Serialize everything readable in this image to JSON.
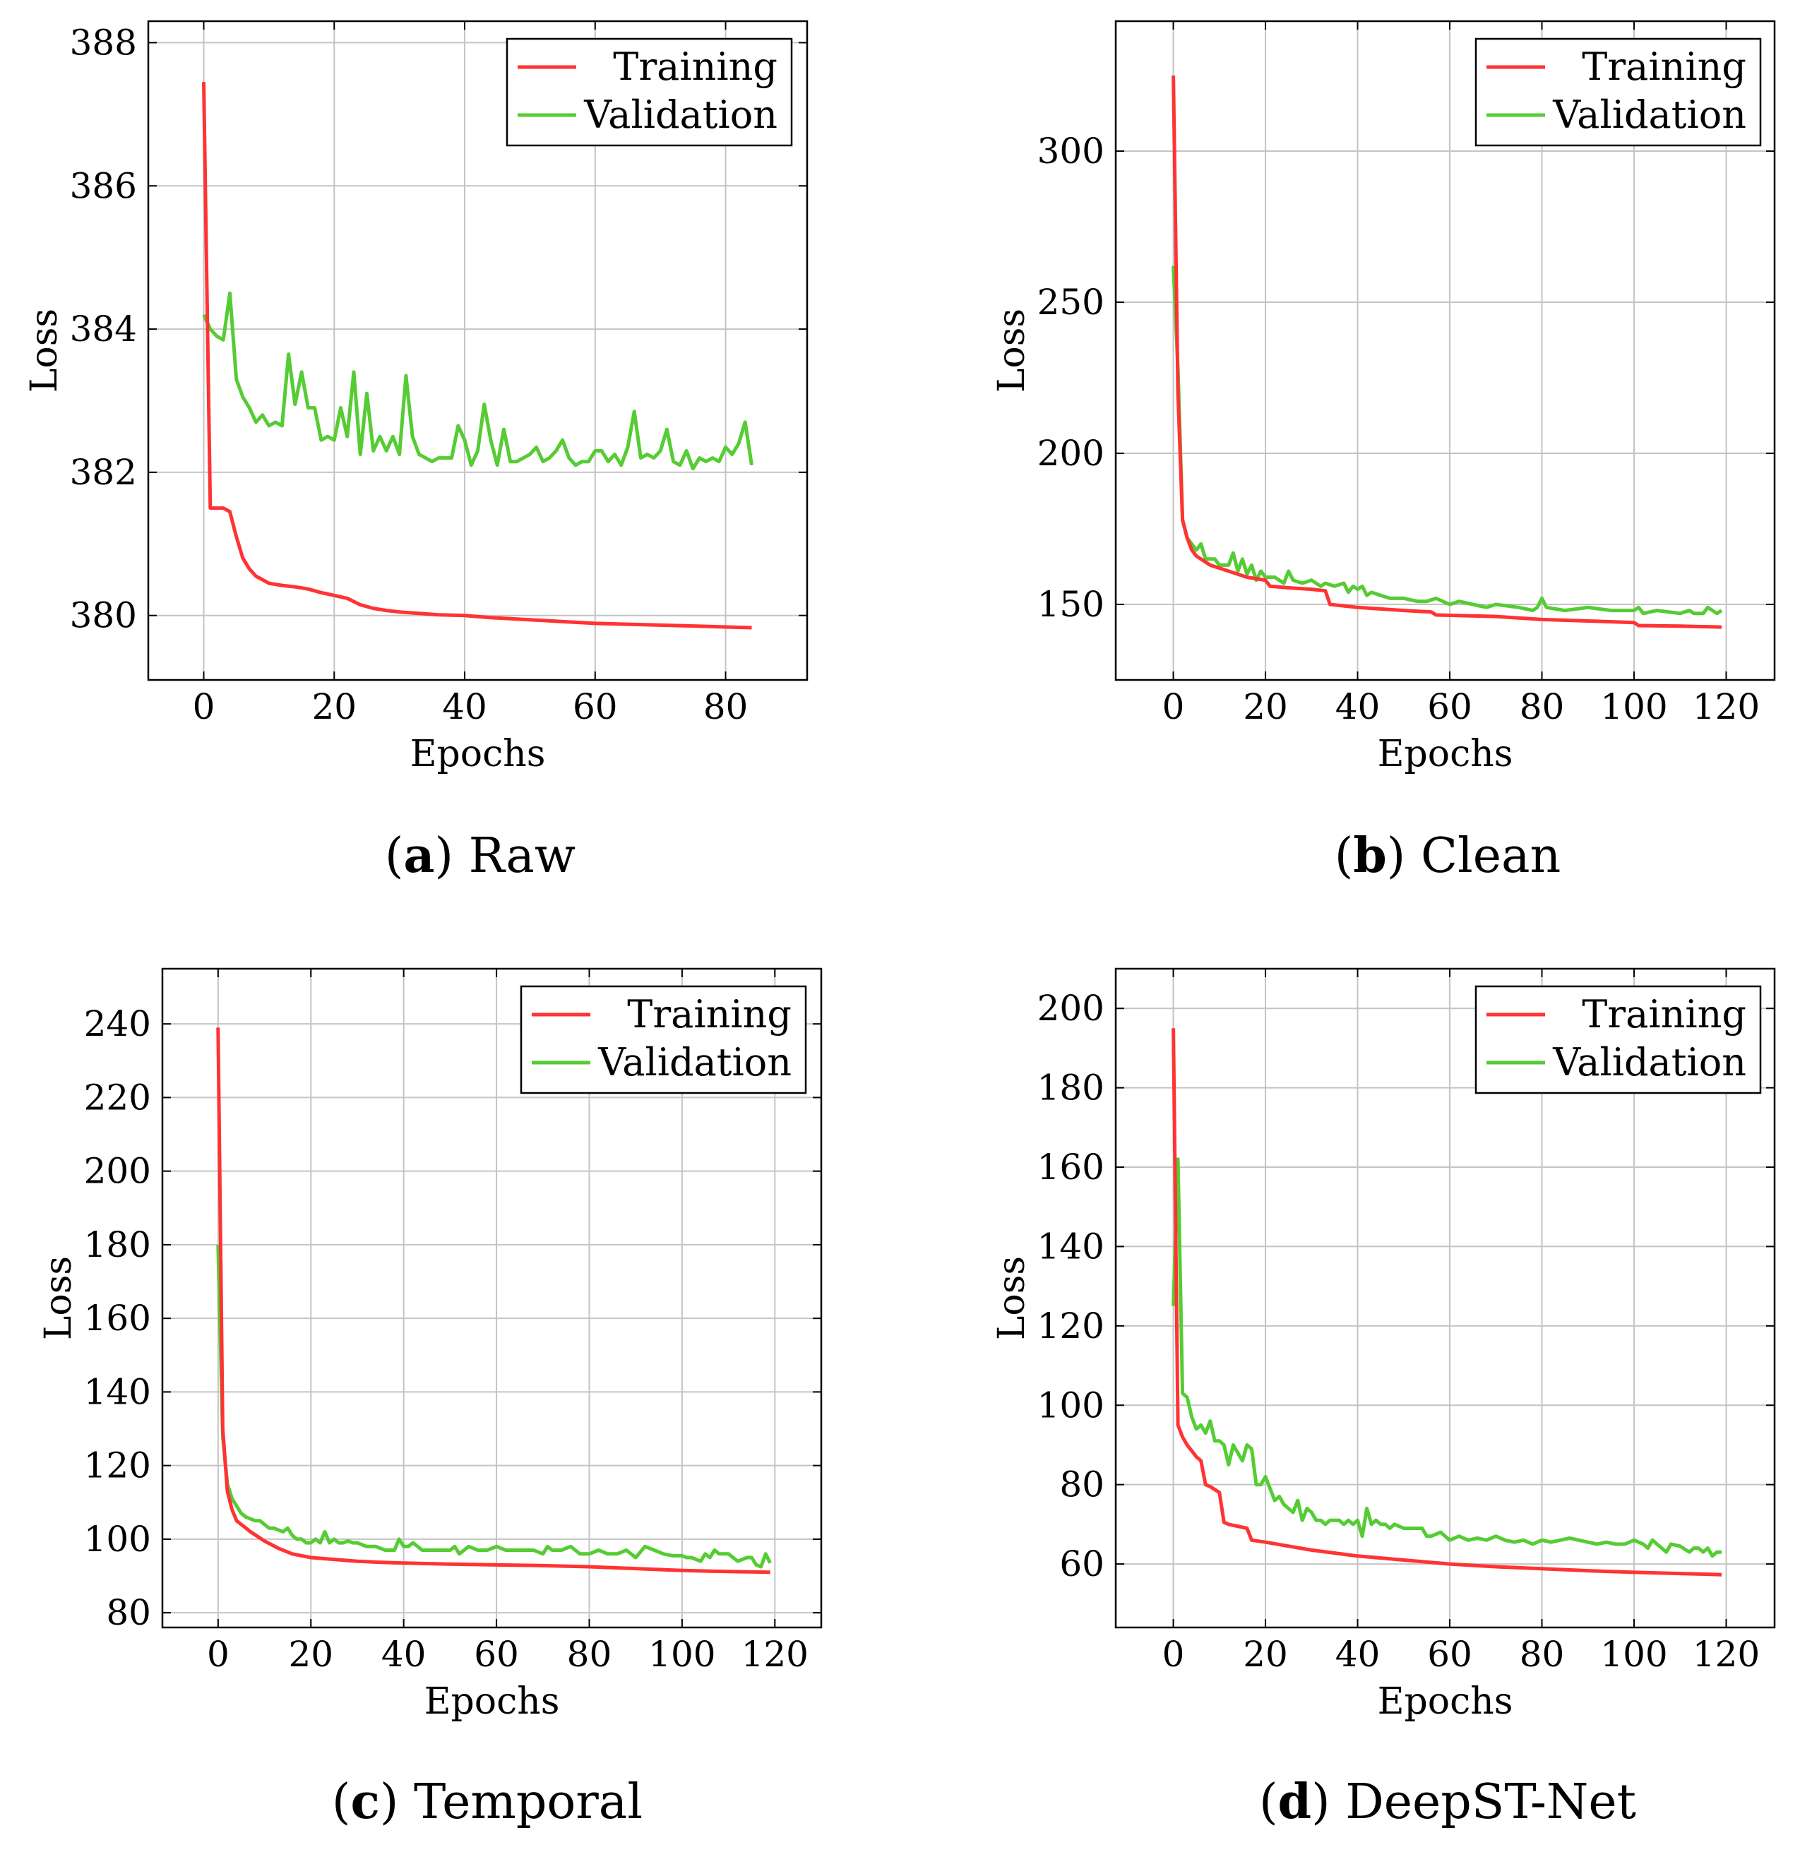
{
  "figure": {
    "panels": [
      {
        "letter": "a",
        "name": "Raw"
      },
      {
        "letter": "b",
        "name": "Clean"
      },
      {
        "letter": "c",
        "name": "Temporal"
      },
      {
        "letter": "d",
        "name": "DeepST-Net"
      }
    ]
  },
  "chart_data": [
    {
      "type": "line",
      "title": "(a) Raw",
      "xlabel": "Epochs",
      "ylabel": "Loss",
      "xlim": [
        -8.5,
        92.5
      ],
      "ylim": [
        379.1,
        388.3
      ],
      "xticks": [
        0,
        20,
        40,
        60,
        80
      ],
      "yticks": [
        380,
        382,
        384,
        386,
        388
      ],
      "grid": true,
      "legend": "top-right",
      "series": [
        {
          "name": "Training",
          "color": "#ff3333",
          "x": [
            0,
            1,
            2,
            3,
            4,
            5,
            6,
            7,
            8,
            9,
            10,
            12,
            14,
            16,
            18,
            20,
            22,
            24,
            26,
            28,
            30,
            33,
            36,
            40,
            44,
            48,
            52,
            56,
            60,
            64,
            68,
            72,
            76,
            80,
            84
          ],
          "values": [
            387.45,
            381.5,
            381.5,
            381.5,
            381.45,
            381.1,
            380.8,
            380.65,
            380.55,
            380.5,
            380.45,
            380.42,
            380.4,
            380.37,
            380.32,
            380.28,
            380.24,
            380.15,
            380.1,
            380.07,
            380.05,
            380.03,
            380.01,
            380.0,
            379.97,
            379.95,
            379.93,
            379.91,
            379.89,
            379.88,
            379.87,
            379.86,
            379.85,
            379.84,
            379.83
          ]
        },
        {
          "name": "Validation",
          "color": "#55cc33",
          "x": [
            0,
            1,
            2,
            3,
            4,
            5,
            6,
            7,
            8,
            9,
            10,
            11,
            12,
            13,
            14,
            15,
            16,
            17,
            18,
            19,
            20,
            21,
            22,
            23,
            24,
            25,
            26,
            27,
            28,
            29,
            30,
            31,
            32,
            33,
            34,
            35,
            36,
            37,
            38,
            39,
            40,
            41,
            42,
            43,
            44,
            45,
            46,
            47,
            48,
            49,
            50,
            51,
            52,
            53,
            54,
            55,
            56,
            57,
            58,
            59,
            60,
            61,
            62,
            63,
            64,
            65,
            66,
            67,
            68,
            69,
            70,
            71,
            72,
            73,
            74,
            75,
            76,
            77,
            78,
            79,
            80,
            81,
            82,
            83,
            84
          ],
          "values": [
            384.2,
            384.0,
            383.9,
            383.85,
            384.5,
            383.3,
            383.05,
            382.9,
            382.7,
            382.8,
            382.65,
            382.7,
            382.65,
            383.65,
            382.95,
            383.4,
            382.9,
            382.9,
            382.45,
            382.5,
            382.45,
            382.9,
            382.5,
            383.4,
            382.25,
            383.1,
            382.3,
            382.5,
            382.3,
            382.5,
            382.25,
            383.35,
            382.5,
            382.25,
            382.2,
            382.15,
            382.2,
            382.2,
            382.2,
            382.65,
            382.45,
            382.1,
            382.3,
            382.95,
            382.45,
            382.1,
            382.6,
            382.15,
            382.15,
            382.2,
            382.25,
            382.35,
            382.15,
            382.2,
            382.3,
            382.45,
            382.2,
            382.1,
            382.15,
            382.15,
            382.3,
            382.3,
            382.15,
            382.25,
            382.1,
            382.35,
            382.85,
            382.2,
            382.25,
            382.2,
            382.3,
            382.6,
            382.15,
            382.1,
            382.3,
            382.05,
            382.2,
            382.15,
            382.2,
            382.15,
            382.35,
            382.25,
            382.4,
            382.7,
            382.1
          ]
        }
      ]
    },
    {
      "type": "line",
      "title": "(b) Clean",
      "xlabel": "Epochs",
      "ylabel": "Loss",
      "xlim": [
        -12.5,
        130.5
      ],
      "ylim": [
        125,
        343
      ],
      "xticks": [
        0,
        20,
        40,
        60,
        80,
        100,
        120
      ],
      "yticks": [
        150,
        200,
        250,
        300
      ],
      "grid": true,
      "legend": "top-right",
      "series": [
        {
          "name": "Training",
          "color": "#ff3333",
          "x": [
            0,
            1,
            2,
            3,
            4,
            5,
            6,
            8,
            10,
            12,
            14,
            16,
            18,
            20,
            21,
            25,
            30,
            33,
            34,
            40,
            50,
            56,
            57,
            70,
            80,
            90,
            100,
            101,
            110,
            119
          ],
          "values": [
            325,
            220,
            178,
            172,
            168,
            166,
            165,
            163,
            162,
            161,
            160,
            159,
            158.5,
            158,
            156,
            155.5,
            155,
            154.5,
            150,
            149,
            148,
            147.5,
            146.5,
            146,
            145,
            144.5,
            144,
            143,
            142.8,
            142.5
          ]
        },
        {
          "name": "Validation",
          "color": "#55cc33",
          "x": [
            0,
            1,
            2,
            3,
            4,
            5,
            6,
            7,
            8,
            9,
            10,
            11,
            12,
            13,
            14,
            15,
            16,
            17,
            18,
            19,
            20,
            22,
            24,
            25,
            26,
            28,
            30,
            32,
            33,
            35,
            37,
            38,
            39,
            40,
            41,
            42,
            43,
            45,
            47,
            50,
            53,
            55,
            57,
            60,
            62,
            65,
            68,
            70,
            75,
            78,
            79,
            80,
            81,
            85,
            90,
            95,
            100,
            101,
            102,
            105,
            110,
            112,
            113,
            115,
            116,
            118,
            119
          ],
          "values": [
            262,
            228,
            178,
            172,
            170,
            168,
            170,
            165,
            165,
            165,
            163,
            163,
            163,
            167,
            161,
            165,
            160,
            163,
            158,
            161,
            159,
            159,
            157,
            161,
            158,
            157,
            158,
            156,
            157,
            156,
            157,
            154,
            156,
            155,
            156,
            153,
            154,
            153,
            152,
            152,
            151,
            151,
            152,
            150,
            151,
            150,
            149,
            150,
            149,
            148,
            149,
            152,
            149,
            148,
            149,
            148,
            148,
            149,
            147,
            148,
            147,
            148,
            147,
            147,
            149,
            147,
            148
          ]
        }
      ]
    },
    {
      "type": "line",
      "title": "(c) Temporal",
      "xlabel": "Epochs",
      "ylabel": "Loss",
      "xlim": [
        -12,
        130
      ],
      "ylim": [
        76,
        255
      ],
      "xticks": [
        0,
        20,
        40,
        60,
        80,
        100,
        120
      ],
      "yticks": [
        80,
        100,
        120,
        140,
        160,
        180,
        200,
        220,
        240
      ],
      "grid": true,
      "legend": "top-right",
      "series": [
        {
          "name": "Training",
          "color": "#ff3333",
          "x": [
            0,
            1,
            2,
            3,
            4,
            5,
            7,
            10,
            13,
            16,
            20,
            25,
            30,
            35,
            40,
            50,
            60,
            70,
            80,
            90,
            100,
            110,
            119
          ],
          "values": [
            239,
            130,
            113,
            108,
            105,
            104,
            102,
            99.5,
            97.5,
            96,
            95,
            94.5,
            94,
            93.7,
            93.5,
            93.2,
            93,
            92.8,
            92.5,
            92,
            91.5,
            91.2,
            91
          ]
        },
        {
          "name": "Validation",
          "color": "#55cc33",
          "x": [
            0,
            1,
            2,
            3,
            4,
            5,
            6,
            7,
            8,
            9,
            10,
            11,
            12,
            13,
            14,
            15,
            16,
            17,
            18,
            19,
            20,
            21,
            22,
            23,
            24,
            25,
            26,
            27,
            28,
            29,
            30,
            32,
            34,
            36,
            38,
            39,
            40,
            41,
            42,
            44,
            46,
            48,
            50,
            51,
            52,
            54,
            56,
            58,
            60,
            62,
            64,
            66,
            68,
            70,
            71,
            72,
            74,
            76,
            78,
            80,
            82,
            84,
            86,
            88,
            90,
            92,
            94,
            96,
            98,
            100,
            101,
            102,
            103,
            104,
            105,
            106,
            107,
            108,
            110,
            112,
            114,
            115,
            116,
            117,
            118,
            119
          ],
          "values": [
            180,
            128,
            115,
            111,
            109,
            107,
            106,
            105.5,
            105,
            105,
            104,
            103,
            103,
            102.5,
            102,
            103,
            101,
            100,
            100,
            99,
            99,
            100,
            99,
            102,
            99,
            100,
            99,
            99,
            99.5,
            99,
            99,
            98,
            98,
            97,
            97,
            100,
            98,
            98,
            99,
            97,
            97,
            97,
            97,
            98,
            96,
            98,
            97,
            97,
            98,
            97,
            97,
            97,
            97,
            96,
            98,
            97,
            97,
            98,
            96,
            96,
            97,
            96,
            96,
            97,
            95,
            98,
            97,
            96,
            95.5,
            95.5,
            95,
            95,
            94.5,
            94,
            96,
            95,
            97,
            96,
            96,
            94,
            95,
            95,
            93,
            92.5,
            96,
            93.5
          ]
        }
      ]
    },
    {
      "type": "line",
      "title": "(d) DeepST-Net",
      "xlabel": "Epochs",
      "ylabel": "Loss",
      "xlim": [
        -12.5,
        130.5
      ],
      "ylim": [
        44,
        210
      ],
      "xticks": [
        0,
        20,
        40,
        60,
        80,
        100,
        120
      ],
      "yticks": [
        60,
        80,
        100,
        120,
        140,
        160,
        180,
        200
      ],
      "grid": true,
      "legend": "top-right",
      "series": [
        {
          "name": "Training",
          "color": "#ff3333",
          "x": [
            0,
            1,
            2,
            3,
            4,
            5,
            6,
            7,
            8,
            10,
            11,
            12,
            14,
            16,
            17,
            20,
            25,
            30,
            40,
            50,
            60,
            70,
            80,
            90,
            100,
            110,
            119
          ],
          "values": [
            195,
            95,
            92,
            90,
            88.5,
            87,
            86,
            80,
            79.5,
            78,
            70.5,
            70,
            69.5,
            69,
            66,
            65.5,
            64.5,
            63.5,
            62,
            61,
            60,
            59.3,
            58.8,
            58.3,
            57.9,
            57.6,
            57.3
          ]
        },
        {
          "name": "Validation",
          "color": "#55cc33",
          "x": [
            0,
            1,
            2,
            3,
            4,
            5,
            6,
            7,
            8,
            9,
            10,
            11,
            12,
            13,
            14,
            15,
            16,
            17,
            18,
            19,
            20,
            21,
            22,
            23,
            24,
            25,
            26,
            27,
            28,
            29,
            30,
            31,
            32,
            33,
            34,
            35,
            36,
            37,
            38,
            39,
            40,
            41,
            42,
            43,
            44,
            45,
            46,
            47,
            48,
            50,
            52,
            54,
            55,
            56,
            58,
            60,
            62,
            64,
            66,
            68,
            70,
            72,
            74,
            76,
            78,
            80,
            82,
            84,
            86,
            88,
            90,
            92,
            94,
            96,
            98,
            100,
            102,
            103,
            104,
            105,
            106,
            107,
            108,
            110,
            112,
            113,
            114,
            115,
            116,
            117,
            118,
            119
          ],
          "values": [
            125,
            162,
            103,
            102,
            97,
            94,
            95,
            93,
            96,
            91,
            91,
            90,
            85,
            90,
            88,
            86,
            90,
            89,
            80,
            80,
            82,
            79,
            76,
            77,
            75,
            74,
            73,
            76,
            71,
            74,
            73,
            71,
            71,
            70,
            71,
            71,
            71,
            70,
            71,
            70,
            71,
            67,
            74,
            70,
            71,
            70,
            70,
            69,
            70,
            69,
            69,
            69,
            67,
            67,
            68,
            66,
            67,
            66,
            66.5,
            66,
            67,
            66,
            65.5,
            66,
            65,
            66,
            65.5,
            66,
            66.5,
            66,
            65.5,
            65,
            65.5,
            65,
            65,
            66,
            65,
            64,
            66,
            65,
            64,
            63,
            65,
            64.5,
            63,
            64,
            64,
            63,
            64,
            62,
            63,
            63
          ]
        }
      ]
    }
  ]
}
